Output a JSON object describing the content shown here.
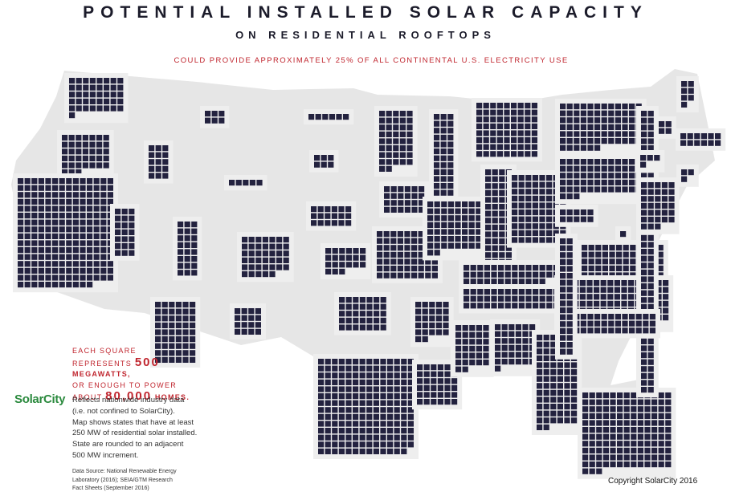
{
  "header": {
    "title": "POTENTIAL INSTALLED SOLAR CAPACITY",
    "subtitle": "ON RESIDENTIAL ROOFTOPS",
    "tagline": "COULD PROVIDE APPROXIMATELY 25% OF ALL CONTINENTAL U.S. ELECTRICITY USE"
  },
  "legend": {
    "line1": "EACH SQUARE",
    "line2_prefix": "REPRESENTS ",
    "megawatts_value": "500",
    "line2_suffix": " MEGAWATTS,",
    "line3": "OR ENOUGH TO POWER",
    "line4_prefix": "ABOUT ",
    "homes_value": "80,000",
    "line4_suffix": " HOMES."
  },
  "brand": {
    "logo": "SolarCity",
    "logo_color": "#2b8a3e"
  },
  "note": {
    "line1": "Reflects nationwide industry data",
    "line2": "(i.e. not confined to SolarCity).",
    "line3": "Map shows states that have at least",
    "line4": "250 MW of residential solar installed.",
    "line5": "State are rounded to an adjacent",
    "line6": "500 MW increment."
  },
  "source": {
    "line1": "Data Source: National Renewable Energy",
    "line2": "Laboratory (2016); SEIA/GTM Research",
    "line3": "Fact Sheets (September 2016)"
  },
  "copyright": "Copyright SolarCity 2016",
  "colors": {
    "tile": "#23223f",
    "tile_background": "#eeeeee",
    "us_outline": "#e6e6e6",
    "accent_red": "#c0252e"
  },
  "map": {
    "unit_megawatts_per_square": 500,
    "states": [
      {
        "id": "WA",
        "squares": 41
      },
      {
        "id": "OR",
        "squares": 38
      },
      {
        "id": "CA",
        "squares": 221
      },
      {
        "id": "ID",
        "squares": 15
      },
      {
        "id": "NV",
        "squares": 21
      },
      {
        "id": "MT",
        "squares": 6
      },
      {
        "id": "WY",
        "squares": 6
      },
      {
        "id": "UT",
        "squares": 24
      },
      {
        "id": "AZ",
        "squares": 54
      },
      {
        "id": "CO",
        "squares": 40
      },
      {
        "id": "NM",
        "squares": 16
      },
      {
        "id": "ND",
        "squares": 5
      },
      {
        "id": "SD",
        "squares": 6
      },
      {
        "id": "NE",
        "squares": 18
      },
      {
        "id": "KS",
        "squares": 21
      },
      {
        "id": "OK",
        "squares": 35
      },
      {
        "id": "TX",
        "squares": 195
      },
      {
        "id": "MN",
        "squares": 42
      },
      {
        "id": "IA",
        "squares": 24
      },
      {
        "id": "MO",
        "squares": 63
      },
      {
        "id": "AR",
        "squares": 27
      },
      {
        "id": "LA",
        "squares": 36
      },
      {
        "id": "WI",
        "squares": 52
      },
      {
        "id": "IL",
        "squares": 65
      },
      {
        "id": "MI",
        "squares": 72
      },
      {
        "id": "IN",
        "squares": 60
      },
      {
        "id": "OH",
        "squares": 80
      },
      {
        "id": "KY",
        "squares": 42
      },
      {
        "id": "TN",
        "squares": 47
      },
      {
        "id": "MS",
        "squares": 32
      },
      {
        "id": "AL",
        "squares": 37
      },
      {
        "id": "GA",
        "squares": 80
      },
      {
        "id": "FL",
        "squares": 146
      },
      {
        "id": "SC",
        "squares": 60
      },
      {
        "id": "NC",
        "squares": 98
      },
      {
        "id": "VA",
        "squares": 68
      },
      {
        "id": "WV",
        "squares": 10
      },
      {
        "id": "PA",
        "squares": 78
      },
      {
        "id": "NY",
        "squares": 82
      },
      {
        "id": "VT",
        "squares": 4
      },
      {
        "id": "NH",
        "squares": 7
      },
      {
        "id": "ME",
        "squares": 12
      },
      {
        "id": "MA",
        "squares": 33
      },
      {
        "id": "CT",
        "squares": 4
      },
      {
        "id": "RI",
        "squares": 3
      },
      {
        "id": "NJ",
        "squares": 42
      },
      {
        "id": "DE",
        "squares": 1
      },
      {
        "id": "MD",
        "squares": 34
      }
    ]
  }
}
